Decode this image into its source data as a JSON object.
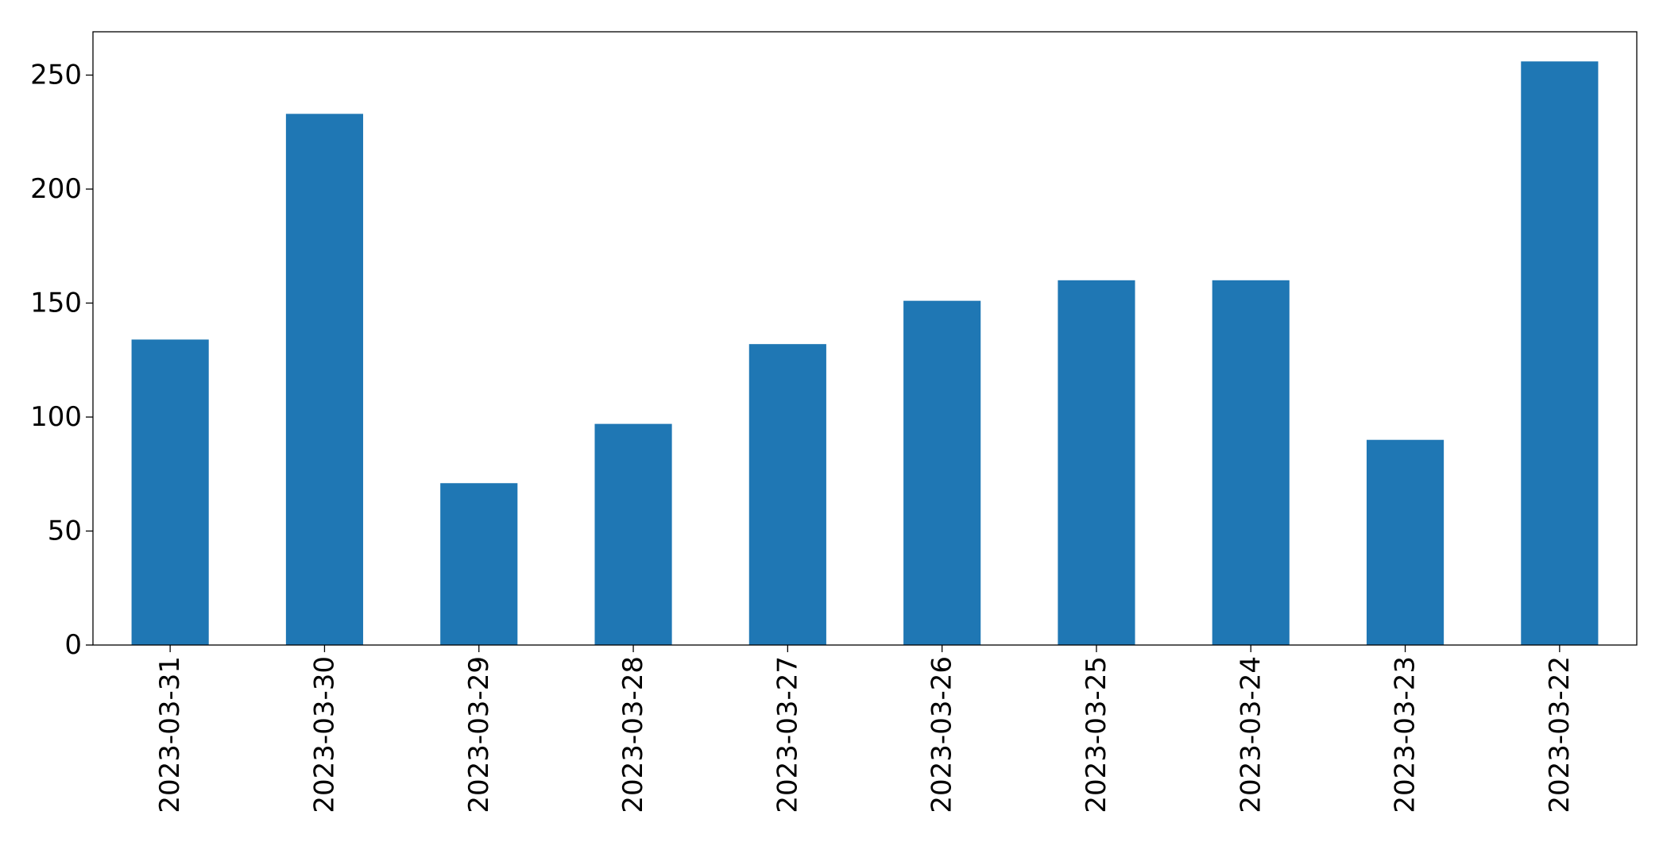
{
  "chart_data": {
    "type": "bar",
    "title": "",
    "xlabel": "",
    "ylabel": "",
    "categories": [
      "2023-03-31",
      "2023-03-30",
      "2023-03-29",
      "2023-03-28",
      "2023-03-27",
      "2023-03-26",
      "2023-03-25",
      "2023-03-24",
      "2023-03-23",
      "2023-03-22"
    ],
    "values": [
      134,
      233,
      71,
      97,
      132,
      151,
      160,
      160,
      90,
      256
    ],
    "ylim": [
      0,
      269
    ],
    "yticks": [
      0,
      50,
      100,
      150,
      200,
      250
    ],
    "grid": false,
    "legend": "none",
    "bar_color": "#1f77b4"
  }
}
